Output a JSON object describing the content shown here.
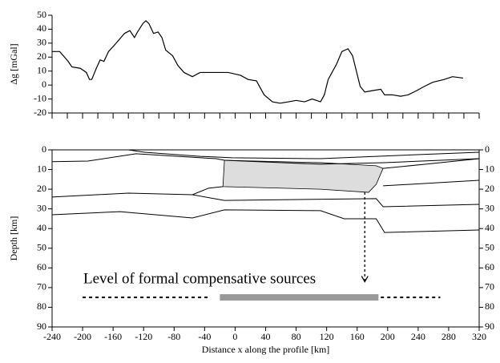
{
  "chart_data": [
    {
      "type": "line",
      "ylabel": "Δg [mGal]",
      "color": "#000000",
      "x": [
        -240,
        -230,
        -219,
        -214,
        -203,
        -195,
        -191,
        -188,
        -182,
        -177,
        -172,
        -166,
        -156,
        -145,
        -138,
        -132,
        -128,
        -121,
        -117,
        -113,
        -107,
        -101,
        -96,
        -91,
        -82,
        -75,
        -67,
        -56,
        -46,
        -33,
        -9,
        7,
        17,
        28,
        38,
        49,
        59,
        70,
        80,
        91,
        101,
        112,
        117,
        122,
        133,
        140,
        148,
        154,
        159,
        164,
        170,
        180,
        191,
        196,
        206,
        217,
        227,
        238,
        248,
        259,
        274,
        285,
        299
      ],
      "values": [
        24,
        24,
        17,
        13,
        12,
        9,
        4,
        4,
        12,
        18,
        17,
        24,
        30,
        37,
        39,
        34,
        38,
        44,
        46,
        44,
        37,
        38,
        34,
        25,
        21,
        14,
        9,
        6,
        9,
        9,
        9,
        7,
        4,
        3,
        -7,
        -12,
        -13,
        -12,
        -11,
        -12,
        -10,
        -12,
        -7,
        4,
        15,
        24,
        26,
        21,
        10,
        -1,
        -5,
        -4,
        -3,
        -7,
        -7,
        -8,
        -7,
        -4,
        -1,
        2,
        4,
        6,
        5
      ],
      "xlim": [
        -240,
        320
      ],
      "ylim": [
        -20,
        50
      ],
      "yticks": [
        -20,
        -10,
        0,
        10,
        20,
        30,
        40,
        50
      ],
      "xticks": [
        -240,
        -220,
        -200,
        -180,
        -160,
        -140,
        -120,
        -100,
        -80,
        -60,
        -40,
        -20,
        0,
        20,
        40,
        60,
        80,
        100,
        120,
        140,
        160,
        180,
        200,
        220,
        240,
        260,
        280,
        300,
        320
      ]
    },
    {
      "type": "section",
      "ylabel": "Depth  [km]",
      "xlabel": "Distance x along the profile [km]",
      "xlim": [
        -240,
        320
      ],
      "ylim": [
        0,
        90
      ],
      "y_inverted": true,
      "yticks": [
        0,
        10,
        20,
        30,
        40,
        50,
        60,
        70,
        80,
        90
      ],
      "xticks": [
        -240,
        -200,
        -160,
        -120,
        -80,
        -40,
        0,
        40,
        80,
        120,
        160,
        200,
        240,
        280,
        320
      ],
      "boundaries": [
        {
          "x": [
            -240,
            -140,
            -119,
            -46,
            -4,
            112,
            185,
            320
          ],
          "y": [
            0,
            0,
            1.2,
            3.3,
            4,
            4.5,
            3.3,
            1.2
          ]
        },
        {
          "x": [
            -240,
            -193,
            -130,
            -25,
            -14,
            112,
            196,
            320
          ],
          "y": [
            6,
            5.7,
            2,
            4.5,
            5.3,
            7.3,
            6.5,
            4.5
          ]
        },
        {
          "x": [
            194,
            250,
            320
          ],
          "y": [
            9.4,
            7.3,
            4.5
          ]
        },
        {
          "x": [
            194,
            320
          ],
          "y": [
            18.3,
            15.5
          ]
        },
        {
          "x": [
            -240,
            -140,
            -56,
            -35,
            -16
          ],
          "y": [
            24,
            22,
            22.8,
            19.5,
            18.7
          ]
        },
        {
          "x": [
            -56,
            -14,
            185,
            194,
            320
          ],
          "y": [
            22.8,
            25.7,
            24.8,
            28.9,
            27.7
          ]
        },
        {
          "x": [
            -240,
            -151,
            -56,
            -14,
            112,
            143,
            185,
            196,
            320
          ],
          "y": [
            33,
            31.4,
            34.6,
            30.5,
            30.9,
            35,
            35,
            42,
            40.7
          ]
        }
      ],
      "body": {
        "fill": "#dddddd",
        "x": [
          -14,
          112,
          185,
          194,
          185,
          175,
          112,
          -16
        ],
        "y": [
          5.3,
          6.5,
          8.1,
          9.4,
          17.5,
          21.6,
          20,
          18.7
        ]
      },
      "annotation": "Level of formal compensative sources",
      "level": {
        "depth": 75,
        "dashed": [
          [
            -200,
            -35
          ],
          [
            191,
            269
          ]
        ],
        "bar": [
          -20,
          188
        ],
        "bar_color": "#999999"
      },
      "arrow": {
        "x": 170,
        "from": 21.6,
        "to": 67
      }
    }
  ]
}
